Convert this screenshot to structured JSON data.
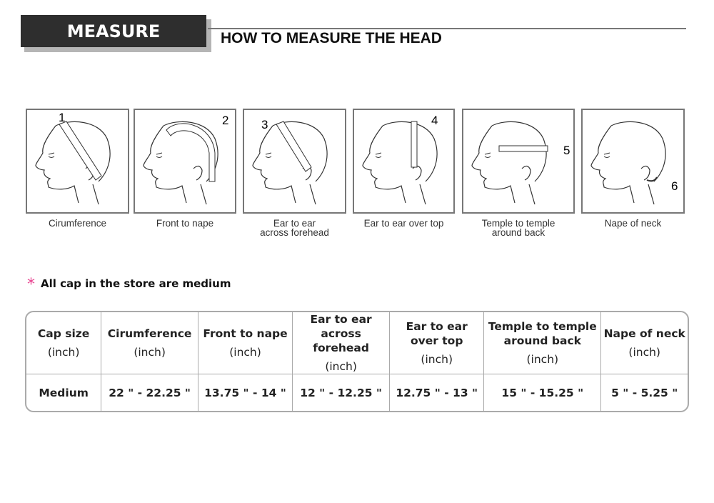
{
  "header": {
    "badge": "MEASURE",
    "title": "HOW TO MEASURE THE HEAD"
  },
  "panels": [
    {
      "number": "1",
      "caption": [
        "Cirumference"
      ]
    },
    {
      "number": "2",
      "caption": [
        "Front to nape"
      ]
    },
    {
      "number": "3",
      "caption": [
        "Ear to ear",
        "across forehead"
      ]
    },
    {
      "number": "4",
      "caption": [
        "Ear to ear over top"
      ]
    },
    {
      "number": "5",
      "caption": [
        "Temple to temple",
        "around back"
      ]
    },
    {
      "number": "6",
      "caption": [
        "Nape of neck"
      ]
    }
  ],
  "note": {
    "star": "*",
    "text": "All cap in the store are medium",
    "star_color": "#e8418f"
  },
  "table": {
    "headers": [
      {
        "label": "Cap size",
        "unit": "(inch)"
      },
      {
        "label": "Cirumference",
        "unit": "(inch)"
      },
      {
        "label": "Front to nape",
        "unit": "(inch)"
      },
      {
        "label": "Ear to ear across forehead",
        "unit": "(inch)"
      },
      {
        "label": "Ear to ear over  top",
        "unit": "(inch)"
      },
      {
        "label": "Temple to temple around back",
        "unit": "(inch)"
      },
      {
        "label": "Nape of neck",
        "unit": "(inch)"
      }
    ],
    "row": [
      "Medium",
      "22 \" - 22.25 \"",
      "13.75 \" - 14 \"",
      "12 \" - 12.25 \"",
      "12.75 \" - 13 \"",
      "15 \" - 15.25 \"",
      "5 \" - 5.25 \""
    ]
  }
}
